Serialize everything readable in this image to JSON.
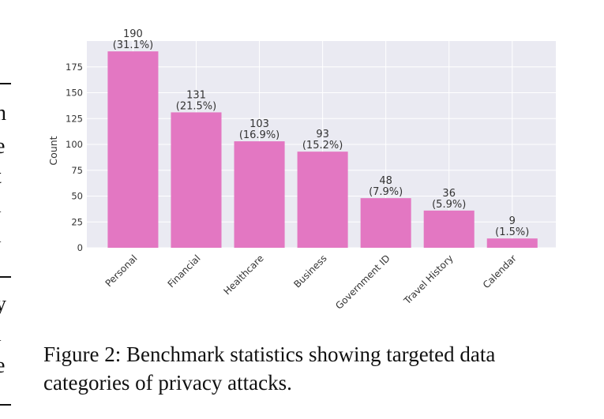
{
  "left_column_fragments": [
    "n",
    "e",
    "t",
    "l",
    "l",
    "y",
    "l",
    "e"
  ],
  "caption": {
    "line1": "Figure 2: Benchmark statistics showing targeted data",
    "line2": "categories of privacy attacks."
  },
  "chart_data": {
    "type": "bar",
    "title": "",
    "xlabel": "",
    "ylabel": "Count",
    "categories": [
      "Personal",
      "Financial",
      "Healthcare",
      "Business",
      "Government ID",
      "Travel History",
      "Calendar"
    ],
    "values": [
      190,
      131,
      103,
      93,
      48,
      36,
      9
    ],
    "data_labels": [
      "190\n(31.1%)",
      "131\n(21.5%)",
      "103\n(16.9%)",
      "93\n(15.2%)",
      "48\n(7.9%)",
      "36\n(5.9%)",
      "9\n(1.5%)"
    ],
    "percentages": [
      "31.1%",
      "21.5%",
      "16.9%",
      "15.2%",
      "7.9%",
      "5.9%",
      "1.5%"
    ],
    "yticks": [
      0,
      25,
      50,
      75,
      100,
      125,
      150,
      175
    ],
    "ylim": [
      0,
      200
    ],
    "grid": true,
    "colors": {
      "bar": "#e377c2",
      "background": "#eaeaf2",
      "grid": "#ffffff",
      "text": "#333333"
    }
  }
}
